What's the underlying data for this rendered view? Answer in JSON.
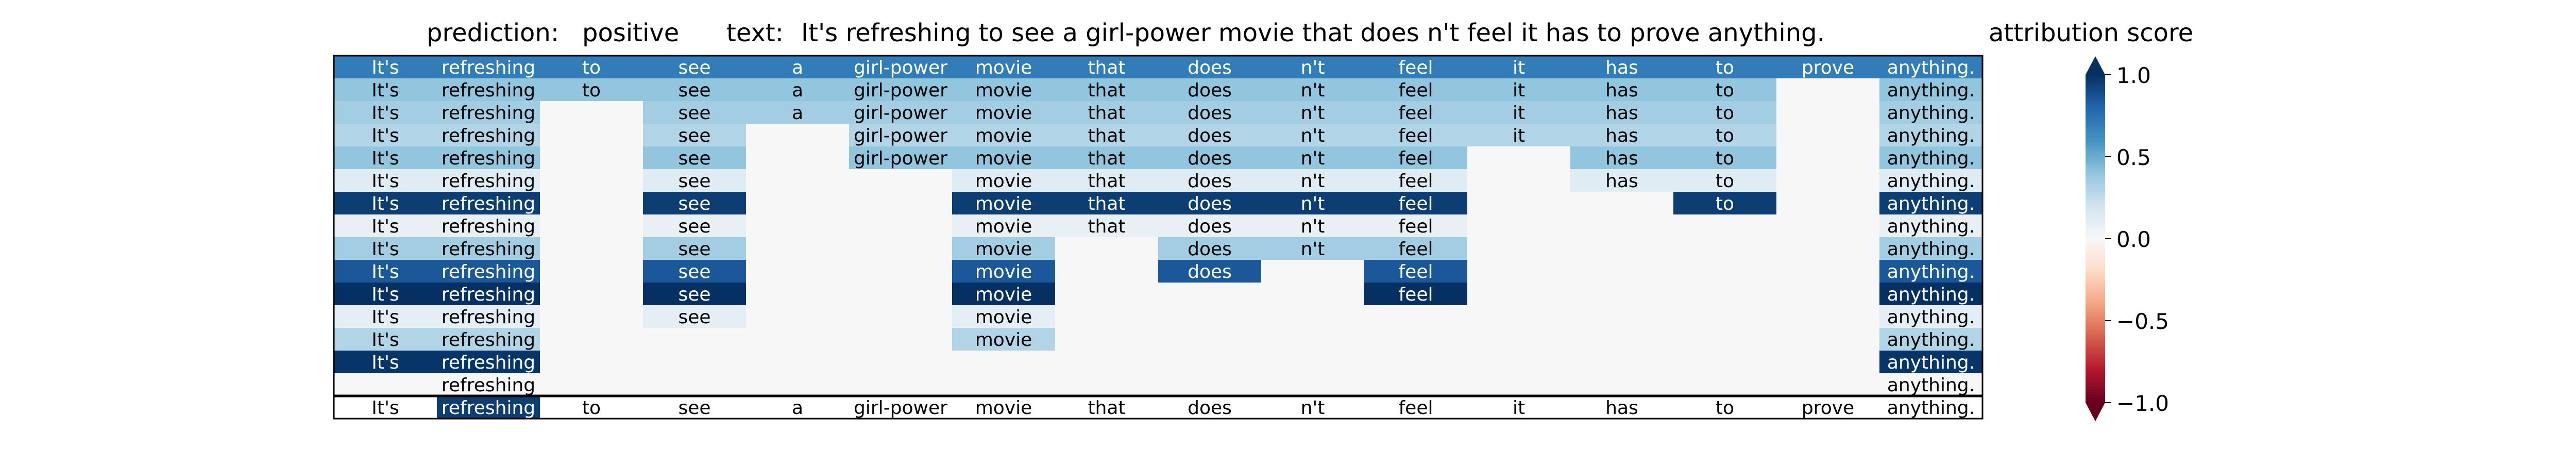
{
  "header": {
    "prediction_label": "prediction:",
    "prediction_value": "positive",
    "text_label": "text:",
    "text_value": "It's refreshing to see a girl-power movie that does n't feel it has to prove anything.",
    "colorbar_title": "attribution score"
  },
  "colorbar": {
    "min": -1.0,
    "max": 1.0,
    "colormap": "RdBu",
    "ticks": [
      1.0,
      0.5,
      0.0,
      -0.5,
      -1.0
    ],
    "tick_labels": [
      "1.0",
      "0.5",
      "0.0",
      "−0.5",
      "−1.0"
    ],
    "extend": "both"
  },
  "chart_data": {
    "type": "heatmap",
    "tokens": [
      "It's",
      "refreshing",
      "to",
      "see",
      "a",
      "girl-power",
      "movie",
      "that",
      "does",
      "n't",
      "feel",
      "it",
      "has",
      "to",
      "prove",
      "anything."
    ],
    "rows": [
      {
        "present": [
          1,
          1,
          1,
          1,
          1,
          1,
          1,
          1,
          1,
          1,
          1,
          1,
          1,
          1,
          1,
          1
        ],
        "scores": [
          0.7,
          0.7,
          0.7,
          0.7,
          0.7,
          0.7,
          0.7,
          0.7,
          0.7,
          0.7,
          0.7,
          0.7,
          0.7,
          0.7,
          0.7,
          0.7
        ]
      },
      {
        "present": [
          1,
          1,
          1,
          1,
          1,
          1,
          1,
          1,
          1,
          1,
          1,
          1,
          1,
          1,
          0,
          1
        ],
        "scores": [
          0.4,
          0.4,
          0.4,
          0.4,
          0.4,
          0.4,
          0.4,
          0.4,
          0.4,
          0.4,
          0.4,
          0.4,
          0.4,
          0.4,
          0,
          0.4
        ]
      },
      {
        "present": [
          1,
          1,
          0,
          1,
          1,
          1,
          1,
          1,
          1,
          1,
          1,
          1,
          1,
          1,
          0,
          1
        ],
        "scores": [
          0.35,
          0.35,
          0,
          0.35,
          0.35,
          0.35,
          0.35,
          0.35,
          0.35,
          0.35,
          0.35,
          0.35,
          0.35,
          0.35,
          0,
          0.35
        ]
      },
      {
        "present": [
          1,
          1,
          0,
          1,
          0,
          1,
          1,
          1,
          1,
          1,
          1,
          1,
          1,
          1,
          0,
          1
        ],
        "scores": [
          0.3,
          0.3,
          0,
          0.3,
          0,
          0.3,
          0.3,
          0.3,
          0.3,
          0.3,
          0.3,
          0.3,
          0.3,
          0.3,
          0,
          0.3
        ]
      },
      {
        "present": [
          1,
          1,
          0,
          1,
          0,
          1,
          1,
          1,
          1,
          1,
          1,
          0,
          1,
          1,
          0,
          1
        ],
        "scores": [
          0.4,
          0.4,
          0,
          0.4,
          0,
          0.4,
          0.4,
          0.4,
          0.4,
          0.4,
          0.4,
          0,
          0.4,
          0.4,
          0,
          0.4
        ]
      },
      {
        "present": [
          1,
          1,
          0,
          1,
          0,
          0,
          1,
          1,
          1,
          1,
          1,
          0,
          1,
          1,
          0,
          1
        ],
        "scores": [
          0.12,
          0.12,
          0,
          0.12,
          0,
          0,
          0.12,
          0.12,
          0.12,
          0.12,
          0.12,
          0,
          0.12,
          0.12,
          0,
          0.12
        ]
      },
      {
        "present": [
          1,
          1,
          0,
          1,
          0,
          0,
          1,
          1,
          1,
          1,
          1,
          0,
          0,
          1,
          0,
          1
        ],
        "scores": [
          0.95,
          0.95,
          0,
          0.95,
          0,
          0,
          0.95,
          0.95,
          0.95,
          0.95,
          0.95,
          0,
          0,
          0.95,
          0,
          0.95
        ]
      },
      {
        "present": [
          1,
          1,
          0,
          1,
          0,
          0,
          1,
          1,
          1,
          1,
          1,
          0,
          0,
          0,
          0,
          1
        ],
        "scores": [
          0.08,
          0.08,
          0,
          0.08,
          0,
          0,
          0.08,
          0.08,
          0.08,
          0.08,
          0.08,
          0,
          0,
          0,
          0,
          0.08
        ]
      },
      {
        "present": [
          1,
          1,
          0,
          1,
          0,
          0,
          1,
          0,
          1,
          1,
          1,
          0,
          0,
          0,
          0,
          1
        ],
        "scores": [
          0.35,
          0.35,
          0,
          0.35,
          0,
          0,
          0.35,
          0,
          0.35,
          0.35,
          0.35,
          0,
          0,
          0,
          0,
          0.35
        ]
      },
      {
        "present": [
          1,
          1,
          0,
          1,
          0,
          0,
          1,
          0,
          1,
          0,
          1,
          0,
          0,
          0,
          0,
          1
        ],
        "scores": [
          0.85,
          0.85,
          0,
          0.85,
          0,
          0,
          0.85,
          0,
          0.85,
          0,
          0.85,
          0,
          0,
          0,
          0,
          0.85
        ]
      },
      {
        "present": [
          1,
          1,
          0,
          1,
          0,
          0,
          1,
          0,
          0,
          0,
          1,
          0,
          0,
          0,
          0,
          1
        ],
        "scores": [
          1.0,
          1.0,
          0,
          1.0,
          0,
          0,
          1.0,
          0,
          0,
          0,
          1.0,
          0,
          0,
          0,
          0,
          1.0
        ]
      },
      {
        "present": [
          1,
          1,
          0,
          1,
          0,
          0,
          1,
          0,
          0,
          0,
          0,
          0,
          0,
          0,
          0,
          1
        ],
        "scores": [
          0.1,
          0.1,
          0,
          0.1,
          0,
          0,
          0.1,
          0,
          0,
          0,
          0,
          0,
          0,
          0,
          0,
          0.1
        ]
      },
      {
        "present": [
          1,
          1,
          0,
          0,
          0,
          0,
          1,
          0,
          0,
          0,
          0,
          0,
          0,
          0,
          0,
          1
        ],
        "scores": [
          0.3,
          0.3,
          0,
          0,
          0,
          0,
          0.3,
          0,
          0,
          0,
          0,
          0,
          0,
          0,
          0,
          0.3
        ]
      },
      {
        "present": [
          1,
          1,
          0,
          0,
          0,
          0,
          0,
          0,
          0,
          0,
          0,
          0,
          0,
          0,
          0,
          1
        ],
        "scores": [
          0.98,
          0.98,
          0,
          0,
          0,
          0,
          0,
          0,
          0,
          0,
          0,
          0,
          0,
          0,
          0,
          0.98
        ]
      },
      {
        "present": [
          0,
          1,
          0,
          0,
          0,
          0,
          0,
          0,
          0,
          0,
          0,
          0,
          0,
          0,
          0,
          1
        ],
        "scores": [
          0,
          0.0,
          0,
          0,
          0,
          0,
          0,
          0,
          0,
          0,
          0,
          0,
          0,
          0,
          0,
          0.0
        ]
      }
    ],
    "bottom_row": {
      "scores": [
        0,
        0.95,
        0,
        0,
        0,
        0,
        0,
        0,
        0,
        0,
        0,
        0,
        0,
        0,
        0,
        0
      ]
    }
  }
}
